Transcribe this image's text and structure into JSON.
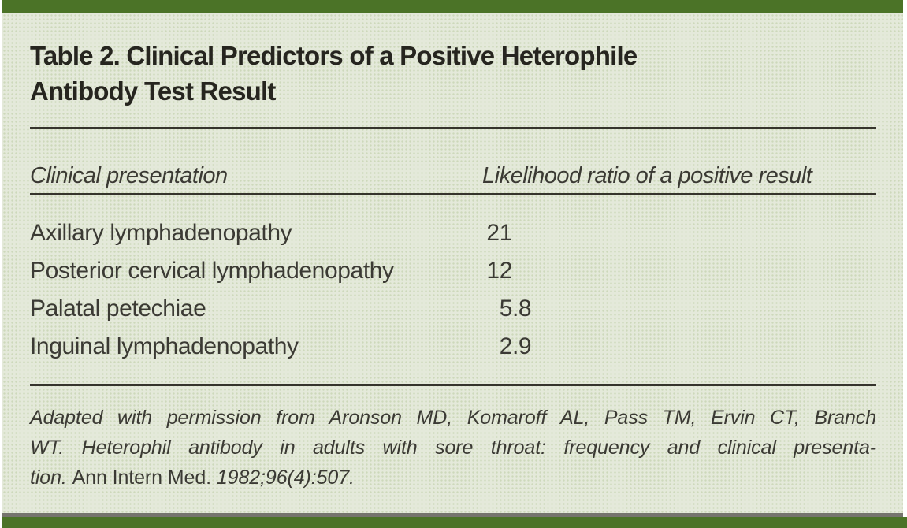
{
  "colors": {
    "accent_green": "#4b7327",
    "panel_green": "#e4e9da",
    "halftone_dot": "#cdd8ba",
    "rule_dark": "#35342c",
    "bottom_gray": "#75746d",
    "title_text": "#26251f",
    "body_text": "#3b3a34"
  },
  "table": {
    "title_line1": "Table 2. Clinical Predictors of a Positive Heterophile",
    "title_line2": "Antibody Test Result",
    "columns": {
      "presentation": "Clinical presentation",
      "ratio": "Likelihood ratio of a positive result"
    },
    "rows": [
      {
        "presentation": "Axillary lymphadenopathy",
        "ratio": "21"
      },
      {
        "presentation": "Posterior cervical lymphadenopathy",
        "ratio": "12"
      },
      {
        "presentation": "Palatal petechiae",
        "ratio": "5.8"
      },
      {
        "presentation": "Inguinal lymphadenopathy",
        "ratio": "2.9"
      }
    ]
  },
  "footnote": {
    "line1": "Adapted with permission from Aronson MD, Komaroff AL, Pass TM, Ervin CT, Branch",
    "line2": "WT. Heterophil antibody in adults with sore throat: frequency and clinical presenta-",
    "line3_segments": [
      {
        "text": "tion. ",
        "italic": true
      },
      {
        "text": "Ann Intern Med. ",
        "italic": false
      },
      {
        "text": "1982;96(4):507.",
        "italic": true
      }
    ]
  }
}
